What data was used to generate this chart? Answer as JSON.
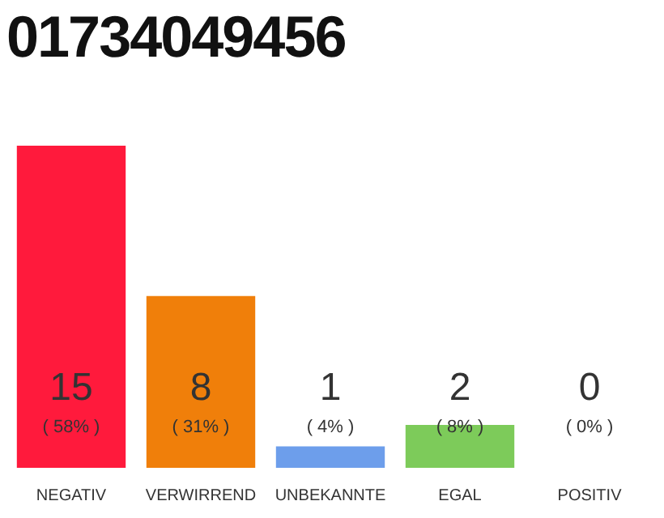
{
  "chart_data": {
    "type": "bar",
    "title": "01734049456",
    "categories": [
      "NEGATIV",
      "VERWIRREND",
      "UNBEKANNTE",
      "EGAL",
      "POSITIV"
    ],
    "values": [
      15,
      8,
      1,
      2,
      0
    ],
    "colors": [
      "#ff1a3c",
      "#f07f0a",
      "#6d9eeb",
      "#7dcb5a",
      "#cccccc"
    ],
    "value_labels": [
      "15 ( 58% )",
      "8 ( 31% )",
      "1 ( 4% )",
      "2 ( 8% )",
      "0 ( 0% )"
    ]
  }
}
